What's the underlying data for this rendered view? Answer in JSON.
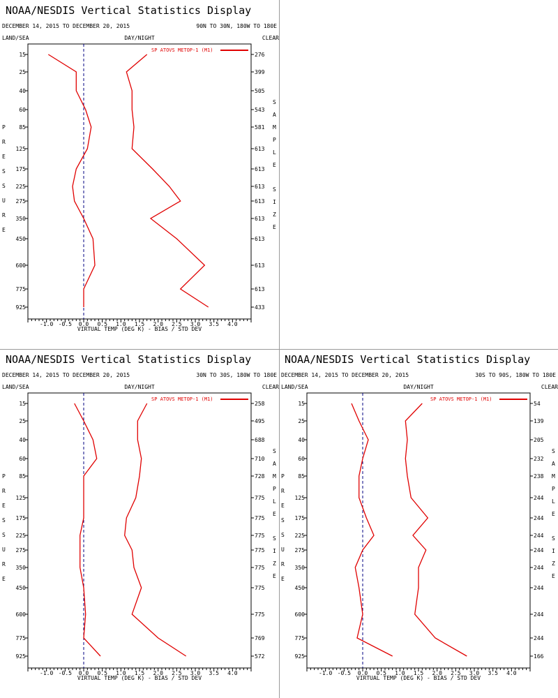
{
  "levels": [
    "15",
    "25",
    "40",
    "60",
    "85",
    "125",
    "175",
    "225",
    "275",
    "350",
    "450",
    "600",
    "775",
    "925"
  ],
  "x_ticks": [
    "-1.0",
    "-0.5",
    "0.0",
    "0.5",
    "1.0",
    "1.5",
    "2.0",
    "2.5",
    "3.0",
    "3.5",
    "4.0"
  ],
  "pressure_letters": [
    "P",
    "R",
    "E",
    "S",
    "S",
    "U",
    "R",
    "E"
  ],
  "sample_letters": [
    "S",
    "A",
    "M",
    "P",
    "L",
    "E"
  ],
  "size_letters": [
    "S",
    "I",
    "Z",
    "E"
  ],
  "colors": {
    "series": "#e00000",
    "axis": "#000000",
    "zero_line": "#000080",
    "divider": "#9a9a9a"
  },
  "chart_data": [
    {
      "type": "line",
      "title": "NOAA/NESDIS Vertical Statistics Display",
      "date_range": "DECEMBER 14, 2015 TO DECEMBER 20, 2015",
      "region": "90N TO 30N, 180W TO 180E",
      "surface": "LAND/SEA",
      "daynight": "DAY/NIGHT",
      "sky": "CLEAR",
      "xlabel": "VIRTUAL TEMP (DEG K) - BIAS / STD DEV",
      "legend": "SP ATOVS METOP-1 (M1)",
      "xlim": [
        -1.5,
        4.5
      ],
      "y_levels": [
        15,
        25,
        40,
        60,
        85,
        125,
        175,
        225,
        275,
        350,
        450,
        600,
        775,
        925
      ],
      "bias": [
        -0.95,
        -0.2,
        -0.2,
        0.05,
        0.2,
        0.1,
        -0.2,
        -0.3,
        -0.25,
        0.0,
        0.25,
        0.3,
        0.0,
        0.0
      ],
      "std_dev": [
        1.7,
        1.15,
        1.3,
        1.3,
        1.35,
        1.3,
        1.85,
        2.3,
        2.6,
        1.8,
        2.5,
        3.25,
        2.6,
        3.35
      ],
      "sample_size": [
        "276",
        "399",
        "505",
        "543",
        "581",
        "613",
        "613",
        "613",
        "613",
        "613",
        "613",
        "613",
        "613",
        "433"
      ]
    },
    {
      "type": "line",
      "title": "NOAA/NESDIS Vertical Statistics Display",
      "date_range": "DECEMBER 14, 2015 TO DECEMBER 20, 2015",
      "region": "30N TO 30S, 180W TO 180E",
      "surface": "LAND/SEA",
      "daynight": "DAY/NIGHT",
      "sky": "CLEAR",
      "xlabel": "VIRTUAL TEMP (DEG K) - BIAS / STD DEV",
      "legend": "SP ATOVS METOP-1 (M1)",
      "xlim": [
        -1.5,
        4.5
      ],
      "y_levels": [
        15,
        25,
        40,
        60,
        85,
        125,
        175,
        225,
        275,
        350,
        450,
        600,
        775,
        925
      ],
      "bias": [
        -0.25,
        0.0,
        0.25,
        0.35,
        0.0,
        0.0,
        0.0,
        -0.1,
        -0.1,
        -0.1,
        0.0,
        0.05,
        0.0,
        0.45
      ],
      "std_dev": [
        1.7,
        1.45,
        1.45,
        1.55,
        1.5,
        1.4,
        1.15,
        1.1,
        1.3,
        1.35,
        1.55,
        1.3,
        2.0,
        2.75
      ],
      "sample_size": [
        "258",
        "495",
        "688",
        "710",
        "728",
        "775",
        "775",
        "775",
        "775",
        "775",
        "775",
        "775",
        "769",
        "572"
      ]
    },
    {
      "type": "line",
      "title": "NOAA/NESDIS Vertical Statistics Display",
      "date_range": "DECEMBER 14, 2015 TO DECEMBER 20, 2015",
      "region": "30S TO 90S, 180W TO 180E",
      "surface": "LAND/SEA",
      "daynight": "DAY/NIGHT",
      "sky": "CLEAR",
      "xlabel": "VIRTUAL TEMP (DEG K) - BIAS / STD DEV",
      "legend": "SP ATOVS METOP-1 (M1)",
      "xlim": [
        -1.5,
        4.5
      ],
      "y_levels": [
        15,
        25,
        40,
        60,
        85,
        125,
        175,
        225,
        275,
        350,
        450,
        600,
        775,
        925
      ],
      "bias": [
        -0.3,
        -0.1,
        0.15,
        0.0,
        -0.1,
        -0.1,
        0.1,
        0.3,
        0.0,
        -0.2,
        -0.1,
        0.0,
        -0.15,
        0.8
      ],
      "std_dev": [
        1.6,
        1.15,
        1.2,
        1.15,
        1.2,
        1.3,
        1.75,
        1.35,
        1.7,
        1.5,
        1.5,
        1.4,
        1.95,
        2.8
      ],
      "sample_size": [
        "54",
        "139",
        "205",
        "232",
        "238",
        "244",
        "244",
        "244",
        "244",
        "244",
        "244",
        "244",
        "244",
        "166"
      ]
    }
  ]
}
